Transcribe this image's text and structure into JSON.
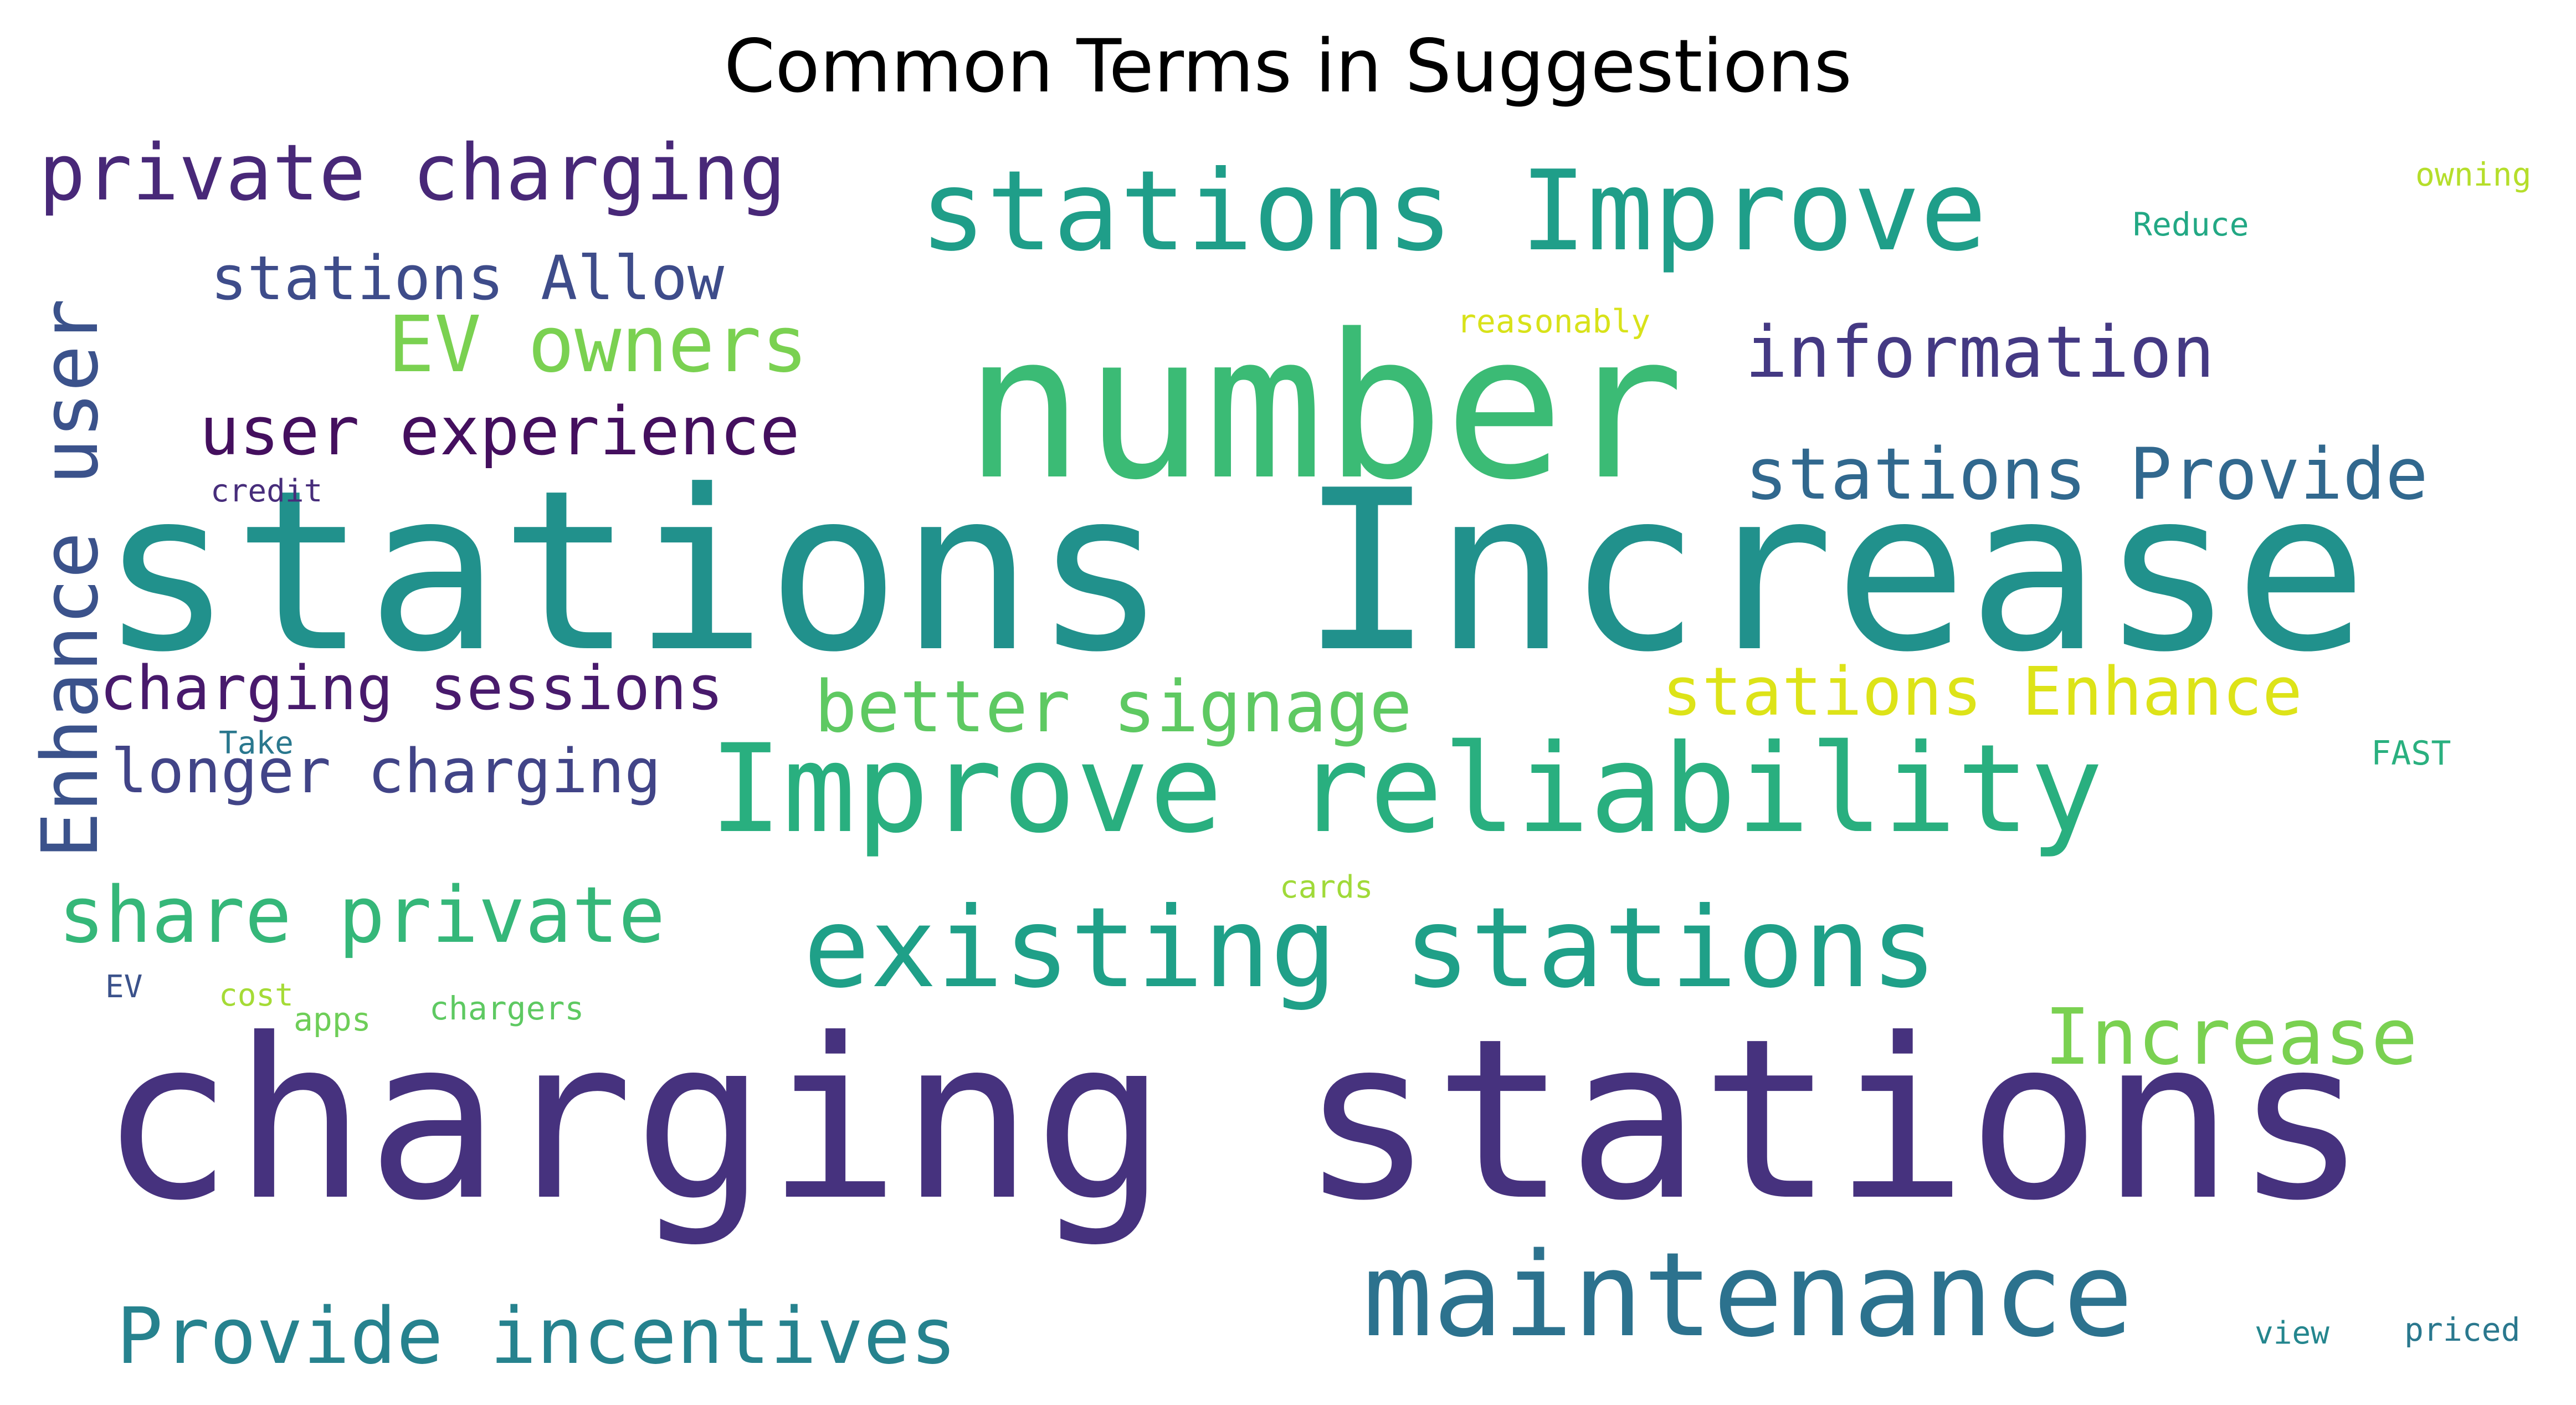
{
  "title": "Common Terms in Suggestions",
  "words": [
    {
      "text": "charging stations",
      "color": "#46327e"
    },
    {
      "text": "stations Increase",
      "color": "#21918c"
    },
    {
      "text": "number",
      "color": "#3bbb75"
    },
    {
      "text": "Improve reliability",
      "color": "#29af7f"
    },
    {
      "text": "existing stations",
      "color": "#1fa088"
    },
    {
      "text": "maintenance",
      "color": "#2c728e"
    },
    {
      "text": "stations Improve",
      "color": "#1f9e89"
    },
    {
      "text": "private charging",
      "color": "#482878"
    },
    {
      "text": "Provide incentives",
      "color": "#26828e"
    },
    {
      "text": "share private",
      "color": "#35b779"
    },
    {
      "text": "Increase",
      "color": "#7ad151"
    },
    {
      "text": "EV owners",
      "color": "#7ad151"
    },
    {
      "text": "user experience",
      "color": "#440f5e"
    },
    {
      "text": "information",
      "color": "#443983"
    },
    {
      "text": "stations Provide",
      "color": "#31688e"
    },
    {
      "text": "better signage",
      "color": "#5ec962"
    },
    {
      "text": "stations Enhance",
      "color": "#dde318"
    },
    {
      "text": "Enhance user",
      "color": "#3b528b"
    },
    {
      "text": "stations Allow",
      "color": "#3e4c8a"
    },
    {
      "text": "charging sessions",
      "color": "#481a6c"
    },
    {
      "text": "longer charging",
      "color": "#414487"
    },
    {
      "text": "Reduce",
      "color": "#22a884"
    },
    {
      "text": "owning",
      "color": "#b5de2b"
    },
    {
      "text": "reasonably",
      "color": "#d8e219"
    },
    {
      "text": "FAST",
      "color": "#2ab07f"
    },
    {
      "text": "credit",
      "color": "#472d7b"
    },
    {
      "text": "Take",
      "color": "#2a788e"
    },
    {
      "text": "cards",
      "color": "#a0da39"
    },
    {
      "text": "EV",
      "color": "#3b528b"
    },
    {
      "text": "cost",
      "color": "#a5db36"
    },
    {
      "text": "apps",
      "color": "#6ece58"
    },
    {
      "text": "chargers",
      "color": "#5ec962"
    },
    {
      "text": "view",
      "color": "#24868e"
    },
    {
      "text": "priced",
      "color": "#2a788e"
    }
  ]
}
